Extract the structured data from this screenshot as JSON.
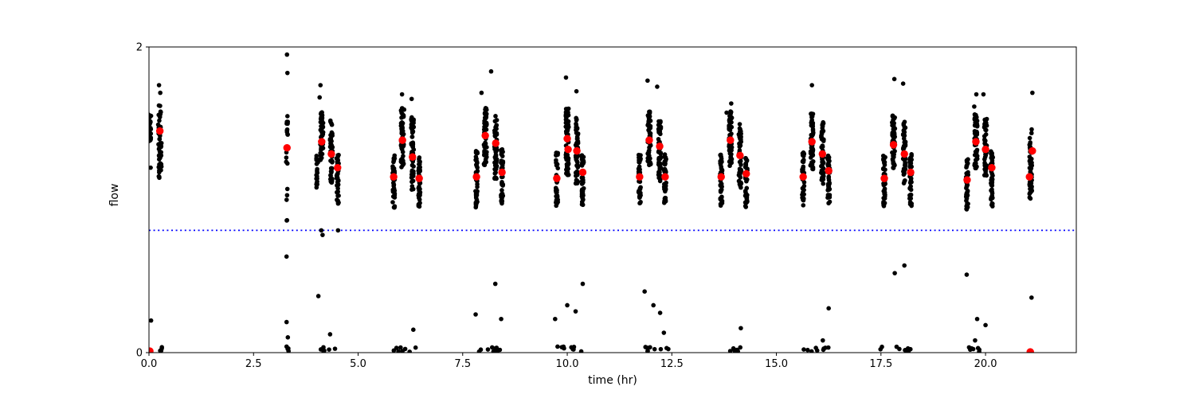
{
  "chart_data": {
    "type": "scatter",
    "title": "",
    "xlabel": "time (hr)",
    "ylabel": "flow",
    "xlim": [
      0,
      22.17
    ],
    "ylim": [
      0,
      2
    ],
    "xticks": [
      0,
      2.5,
      5,
      7.5,
      10,
      12.5,
      15,
      17.5,
      20
    ],
    "xtick_labels": [
      "0.0",
      "2.5",
      "5.0",
      "7.5",
      "10.0",
      "12.5",
      "15.0",
      "17.5",
      "20.0"
    ],
    "yticks": [
      0,
      2
    ],
    "ytick_labels": [
      "0",
      "2"
    ],
    "grid": false,
    "legend": null,
    "threshold_line": {
      "y": 0.8,
      "color": "#0000ff",
      "style": "dotted"
    },
    "colors": {
      "points": "#000000",
      "centers": "#ff0000",
      "spines": "#000000"
    },
    "marker_radius": {
      "points": 2.8,
      "centers": 4.7
    },
    "red_centers": [
      [
        0.02,
        0.01
      ],
      [
        0.26,
        1.45
      ],
      [
        3.3,
        1.34
      ],
      [
        4.13,
        1.38
      ],
      [
        4.36,
        1.3
      ],
      [
        4.51,
        1.21
      ],
      [
        5.85,
        1.15
      ],
      [
        6.06,
        1.39
      ],
      [
        6.3,
        1.28
      ],
      [
        6.46,
        1.14
      ],
      [
        7.83,
        1.15
      ],
      [
        8.04,
        1.42
      ],
      [
        8.29,
        1.37
      ],
      [
        8.44,
        1.18
      ],
      [
        9.75,
        1.14
      ],
      [
        10.0,
        1.4
      ],
      [
        10.02,
        1.33
      ],
      [
        10.23,
        1.32
      ],
      [
        10.37,
        1.18
      ],
      [
        11.73,
        1.15
      ],
      [
        11.96,
        1.39
      ],
      [
        12.21,
        1.35
      ],
      [
        12.34,
        1.15
      ],
      [
        13.68,
        1.15
      ],
      [
        13.9,
        1.39
      ],
      [
        14.13,
        1.29
      ],
      [
        14.28,
        1.17
      ],
      [
        15.64,
        1.15
      ],
      [
        15.85,
        1.38
      ],
      [
        16.1,
        1.3
      ],
      [
        16.25,
        1.19
      ],
      [
        17.58,
        1.14
      ],
      [
        17.8,
        1.36
      ],
      [
        18.06,
        1.3
      ],
      [
        18.21,
        1.18
      ],
      [
        19.56,
        1.13
      ],
      [
        19.77,
        1.38
      ],
      [
        20.0,
        1.33
      ],
      [
        20.15,
        1.21
      ],
      [
        21.05,
        1.15
      ],
      [
        21.12,
        1.32
      ],
      [
        21.07,
        0.005
      ]
    ],
    "black_outliers": [
      [
        0.04,
        1.21
      ],
      [
        0.05,
        0.21
      ],
      [
        0.27,
        1.7
      ],
      [
        0.24,
        1.75
      ],
      [
        3.3,
        1.95
      ],
      [
        3.31,
        1.83
      ],
      [
        3.29,
        0.2
      ],
      [
        3.32,
        0.1
      ],
      [
        4.1,
        1.75
      ],
      [
        4.08,
        1.67
      ],
      [
        4.05,
        0.37
      ],
      [
        4.12,
        0.8
      ],
      [
        4.15,
        0.77
      ],
      [
        4.52,
        0.8
      ],
      [
        4.33,
        0.12
      ],
      [
        6.05,
        1.69
      ],
      [
        6.28,
        1.66
      ],
      [
        6.1,
        1.59
      ],
      [
        6.32,
        0.15
      ],
      [
        8.18,
        1.84
      ],
      [
        7.95,
        1.7
      ],
      [
        7.81,
        0.25
      ],
      [
        8.28,
        0.45
      ],
      [
        8.42,
        0.22
      ],
      [
        9.97,
        1.8
      ],
      [
        10.22,
        1.71
      ],
      [
        9.71,
        0.22
      ],
      [
        10.0,
        0.31
      ],
      [
        10.2,
        0.27
      ],
      [
        10.37,
        0.45
      ],
      [
        11.92,
        1.78
      ],
      [
        12.15,
        1.74
      ],
      [
        11.85,
        0.4
      ],
      [
        12.06,
        0.31
      ],
      [
        12.22,
        0.26
      ],
      [
        12.31,
        0.13
      ],
      [
        13.92,
        1.63
      ],
      [
        13.81,
        1.57
      ],
      [
        14.15,
        0.16
      ],
      [
        15.85,
        1.75
      ],
      [
        16.25,
        0.29
      ],
      [
        16.11,
        0.08
      ],
      [
        17.82,
        1.79
      ],
      [
        18.03,
        1.76
      ],
      [
        17.83,
        0.52
      ],
      [
        18.06,
        0.57
      ],
      [
        19.78,
        1.69
      ],
      [
        19.95,
        1.69
      ],
      [
        19.73,
        1.61
      ],
      [
        19.55,
        0.51
      ],
      [
        19.8,
        0.22
      ],
      [
        20.0,
        0.18
      ],
      [
        19.75,
        0.08
      ],
      [
        21.12,
        1.7
      ],
      [
        21.1,
        0.36
      ]
    ],
    "black_clusters": [
      {
        "x": 0.0,
        "jx": 0.05,
        "y0": 1.38,
        "y1": 1.57,
        "n": 45
      },
      {
        "x": 0.26,
        "jx": 0.04,
        "y0": 1.13,
        "y1": 1.62,
        "n": 50
      },
      {
        "x": 3.3,
        "jx": 0.02,
        "y0": 1.22,
        "y1": 1.55,
        "n": 18
      },
      {
        "x": 3.3,
        "jx": 0.015,
        "y0": 0.6,
        "y1": 1.2,
        "n": 6
      },
      {
        "x": 4.02,
        "jx": 0.02,
        "y0": 1.08,
        "y1": 1.3,
        "n": 20
      },
      {
        "x": 4.13,
        "jx": 0.035,
        "y0": 1.25,
        "y1": 1.58,
        "n": 55
      },
      {
        "x": 4.36,
        "jx": 0.03,
        "y0": 1.1,
        "y1": 1.52,
        "n": 50
      },
      {
        "x": 4.51,
        "jx": 0.025,
        "y0": 0.97,
        "y1": 1.3,
        "n": 40
      },
      {
        "x": 5.85,
        "jx": 0.025,
        "y0": 0.95,
        "y1": 1.31,
        "n": 45
      },
      {
        "x": 6.06,
        "jx": 0.035,
        "y0": 1.2,
        "y1": 1.6,
        "n": 60
      },
      {
        "x": 6.3,
        "jx": 0.03,
        "y0": 1.05,
        "y1": 1.55,
        "n": 55
      },
      {
        "x": 6.46,
        "jx": 0.025,
        "y0": 0.95,
        "y1": 1.28,
        "n": 42
      },
      {
        "x": 7.83,
        "jx": 0.025,
        "y0": 0.95,
        "y1": 1.32,
        "n": 45
      },
      {
        "x": 8.04,
        "jx": 0.035,
        "y0": 1.22,
        "y1": 1.6,
        "n": 60
      },
      {
        "x": 8.29,
        "jx": 0.03,
        "y0": 1.12,
        "y1": 1.55,
        "n": 55
      },
      {
        "x": 8.44,
        "jx": 0.025,
        "y0": 0.96,
        "y1": 1.33,
        "n": 45
      },
      {
        "x": 9.75,
        "jx": 0.025,
        "y0": 0.95,
        "y1": 1.32,
        "n": 45
      },
      {
        "x": 10.0,
        "jx": 0.035,
        "y0": 1.15,
        "y1": 1.6,
        "n": 70
      },
      {
        "x": 10.23,
        "jx": 0.03,
        "y0": 1.1,
        "y1": 1.55,
        "n": 55
      },
      {
        "x": 10.37,
        "jx": 0.025,
        "y0": 0.95,
        "y1": 1.3,
        "n": 45
      },
      {
        "x": 11.73,
        "jx": 0.025,
        "y0": 0.97,
        "y1": 1.3,
        "n": 42
      },
      {
        "x": 11.96,
        "jx": 0.035,
        "y0": 1.22,
        "y1": 1.58,
        "n": 58
      },
      {
        "x": 12.21,
        "jx": 0.03,
        "y0": 1.12,
        "y1": 1.52,
        "n": 52
      },
      {
        "x": 12.34,
        "jx": 0.025,
        "y0": 0.97,
        "y1": 1.3,
        "n": 42
      },
      {
        "x": 13.68,
        "jx": 0.025,
        "y0": 0.96,
        "y1": 1.3,
        "n": 44
      },
      {
        "x": 13.9,
        "jx": 0.035,
        "y0": 1.22,
        "y1": 1.58,
        "n": 58
      },
      {
        "x": 14.13,
        "jx": 0.03,
        "y0": 1.08,
        "y1": 1.5,
        "n": 52
      },
      {
        "x": 14.28,
        "jx": 0.025,
        "y0": 0.95,
        "y1": 1.28,
        "n": 42
      },
      {
        "x": 15.64,
        "jx": 0.025,
        "y0": 0.96,
        "y1": 1.31,
        "n": 44
      },
      {
        "x": 15.85,
        "jx": 0.035,
        "y0": 1.2,
        "y1": 1.58,
        "n": 58
      },
      {
        "x": 16.1,
        "jx": 0.03,
        "y0": 1.1,
        "y1": 1.52,
        "n": 52
      },
      {
        "x": 16.25,
        "jx": 0.025,
        "y0": 0.96,
        "y1": 1.3,
        "n": 42
      },
      {
        "x": 17.58,
        "jx": 0.025,
        "y0": 0.95,
        "y1": 1.3,
        "n": 44
      },
      {
        "x": 17.8,
        "jx": 0.035,
        "y0": 1.2,
        "y1": 1.56,
        "n": 58
      },
      {
        "x": 18.06,
        "jx": 0.03,
        "y0": 1.1,
        "y1": 1.52,
        "n": 52
      },
      {
        "x": 18.21,
        "jx": 0.025,
        "y0": 0.96,
        "y1": 1.3,
        "n": 42
      },
      {
        "x": 19.56,
        "jx": 0.025,
        "y0": 0.92,
        "y1": 1.28,
        "n": 44
      },
      {
        "x": 19.77,
        "jx": 0.035,
        "y0": 1.18,
        "y1": 1.56,
        "n": 58
      },
      {
        "x": 20.0,
        "jx": 0.03,
        "y0": 1.12,
        "y1": 1.53,
        "n": 52
      },
      {
        "x": 20.15,
        "jx": 0.025,
        "y0": 0.95,
        "y1": 1.32,
        "n": 42
      },
      {
        "x": 21.08,
        "jx": 0.03,
        "y0": 1.0,
        "y1": 1.48,
        "n": 55
      }
    ],
    "baseline_clusters": [
      {
        "x": 0.26,
        "jx": 0.05,
        "n": 4
      },
      {
        "x": 3.33,
        "jx": 0.07,
        "n": 4
      },
      {
        "x": 4.28,
        "jx": 0.22,
        "n": 7
      },
      {
        "x": 6.12,
        "jx": 0.28,
        "n": 8
      },
      {
        "x": 8.15,
        "jx": 0.33,
        "n": 9
      },
      {
        "x": 10.05,
        "jx": 0.3,
        "n": 9
      },
      {
        "x": 12.1,
        "jx": 0.32,
        "n": 9
      },
      {
        "x": 13.95,
        "jx": 0.27,
        "n": 7
      },
      {
        "x": 15.95,
        "jx": 0.35,
        "n": 9
      },
      {
        "x": 17.85,
        "jx": 0.37,
        "n": 10
      },
      {
        "x": 19.85,
        "jx": 0.27,
        "n": 7
      }
    ]
  }
}
